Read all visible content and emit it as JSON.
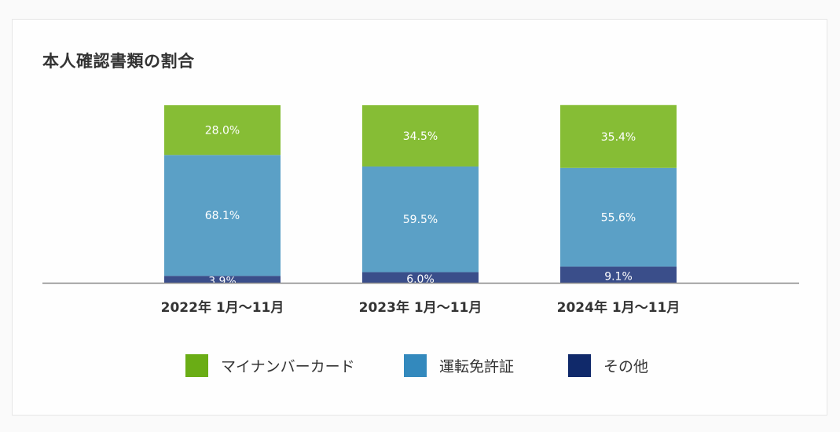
{
  "chart_data": {
    "type": "bar",
    "stacked": true,
    "title": "本人確認書類の割合",
    "xlabel": "",
    "ylabel": "",
    "ylim": [
      0,
      100
    ],
    "grid": false,
    "legend_position": "bottom",
    "categories": [
      "2022年 1月〜11月",
      "2023年 1月〜11月",
      "2024年 1月〜11月"
    ],
    "series": [
      {
        "name": "その他",
        "color": "#3a4e8a",
        "legend_color": "#10296a",
        "values": [
          3.9,
          6.0,
          9.1
        ],
        "labels": [
          "3.9%",
          "6.0%",
          "9.1%"
        ]
      },
      {
        "name": "運転免許証",
        "color": "#5ba0c6",
        "legend_color": "#3389bd",
        "values": [
          68.1,
          59.5,
          55.6
        ],
        "labels": [
          "68.1%",
          "59.5%",
          "55.6%"
        ]
      },
      {
        "name": "マイナンバーカード",
        "color": "#86bd35",
        "legend_color": "#6aad15",
        "values": [
          28.0,
          34.5,
          35.4
        ],
        "labels": [
          "28.0%",
          "34.5%",
          "35.4%"
        ]
      }
    ],
    "legend_order": [
      "マイナンバーカード",
      "運転免許証",
      "その他"
    ]
  }
}
